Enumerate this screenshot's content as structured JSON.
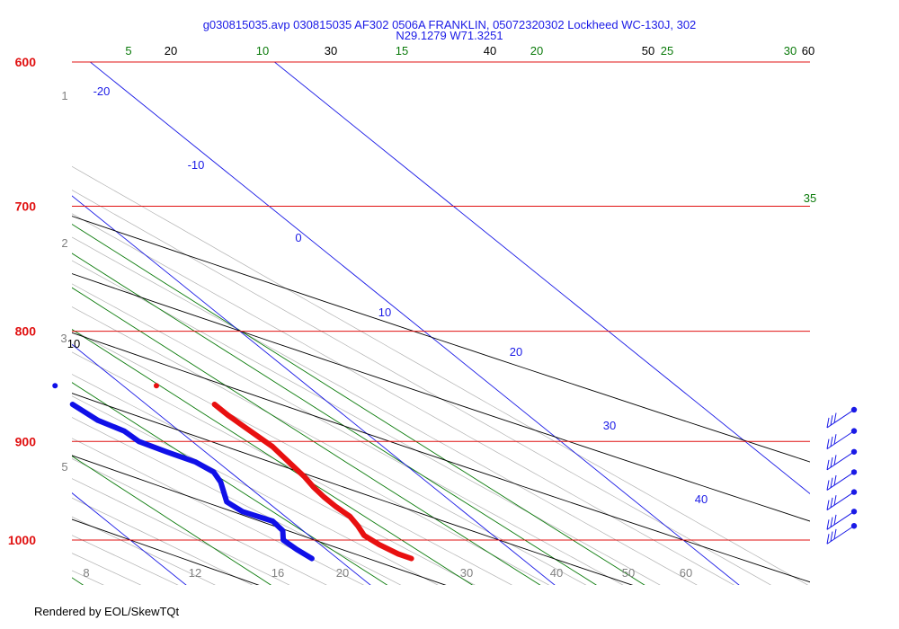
{
  "chart_data": {
    "type": "skew-t",
    "title": "g030815035.avp 030815035 AF302 0506A FRANKLIN, 05072320302 Lockheed WC-130J, 302",
    "subtitle": "N29.1279 W71.3251",
    "footer": "Rendered by EOL/SkewTQt",
    "pressure_axis": {
      "levels": [
        600,
        700,
        800,
        900,
        1000
      ],
      "ylim": [
        1030,
        600
      ],
      "color": "#e01010"
    },
    "temperature_range": [
      -25,
      45
    ],
    "isotherm_labels": [
      "-20",
      "-10",
      "0",
      "10",
      "20",
      "30",
      "40"
    ],
    "dry_adiabat_labels": [
      "10",
      "20",
      "30",
      "40",
      "50",
      "60"
    ],
    "mixing_ratio_labels": [
      "5",
      "10",
      "15",
      "20",
      "25",
      "30",
      "35"
    ],
    "height_labels_left": [
      "1",
      "2",
      "3",
      "5"
    ],
    "bottom_labels": [
      "8",
      "12",
      "16",
      "20",
      "30",
      "40",
      "50",
      "60"
    ],
    "colors": {
      "isobar": "#e01010",
      "isotherm": "#1a1ae6",
      "dry_adiabat": "#000000",
      "moist_adiabat": "#b0b0b0",
      "mixing_ratio": "#0a7a0a",
      "temperature": "#e81010",
      "dewpoint": "#1010e8",
      "wind": "#1a1ae6"
    },
    "temperature_profile": [
      [
        1020,
        24.0
      ],
      [
        1015,
        23.6
      ],
      [
        1005,
        23.2
      ],
      [
        995,
        23.0
      ],
      [
        985,
        23.3
      ],
      [
        975,
        23.5
      ],
      [
        965,
        23.4
      ],
      [
        955,
        23.4
      ],
      [
        945,
        23.5
      ],
      [
        935,
        23.7
      ],
      [
        925,
        23.8
      ],
      [
        915,
        23.9
      ],
      [
        905,
        24.0
      ],
      [
        895,
        23.9
      ],
      [
        885,
        23.8
      ],
      [
        875,
        23.7
      ],
      [
        865,
        23.7
      ]
    ],
    "dewpoint_profile": [
      [
        1020,
        18.6
      ],
      [
        1010,
        18.4
      ],
      [
        1000,
        18.3
      ],
      [
        990,
        18.9
      ],
      [
        980,
        19.0
      ],
      [
        970,
        18.0
      ],
      [
        960,
        17.8
      ],
      [
        950,
        18.3
      ],
      [
        940,
        18.8
      ],
      [
        930,
        19.1
      ],
      [
        920,
        18.8
      ],
      [
        910,
        17.9
      ],
      [
        900,
        17.1
      ],
      [
        890,
        17.0
      ],
      [
        880,
        16.3
      ],
      [
        870,
        16.1
      ],
      [
        865,
        16.0
      ]
    ],
    "isolated_points": [
      {
        "kind": "temperature",
        "p": 848,
        "t": 21.8
      },
      {
        "kind": "dewpoint",
        "p": 848,
        "t": 16.3
      }
    ],
    "wind_barbs": [
      {
        "p": 870
      },
      {
        "p": 890
      },
      {
        "p": 910
      },
      {
        "p": 930
      },
      {
        "p": 950
      },
      {
        "p": 970
      },
      {
        "p": 985
      }
    ]
  }
}
